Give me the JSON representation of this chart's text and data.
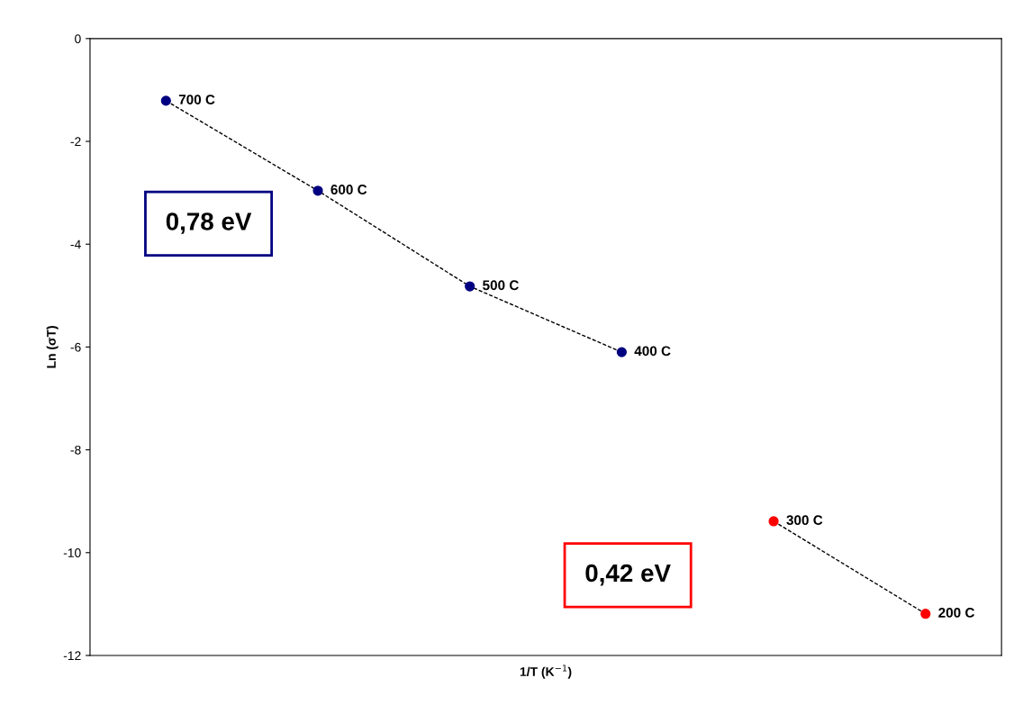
{
  "chart_data": {
    "type": "scatter",
    "xlabel": "1/T (K$^{−1}$)",
    "ylabel": "Ln (σT)",
    "categories": [
      null,
      null,
      null,
      null,
      null,
      null
    ],
    "series": [
      {
        "type": "line",
        "color": "#000000",
        "values": [
          -1.21,
          -2.96,
          -4.82,
          -6.1,
          null,
          null
        ],
        "marker": "none",
        "line_style": "dashed"
      },
      {
        "type": "line",
        "color": "#000000",
        "values": [
          null,
          null,
          null,
          null,
          -9.39,
          -11.19
        ],
        "marker": "none",
        "line_style": "dashed"
      },
      {
        "color": "#000080",
        "values": [
          -1.21,
          -2.96,
          -4.82,
          -6.1,
          null,
          null
        ]
      },
      {
        "color": "#ff0000",
        "values": [
          null,
          null,
          null,
          null,
          -9.39,
          -11.19
        ]
      }
    ],
    "marker": "circle",
    "ylim": [
      -12,
      0
    ],
    "yticks": [
      0,
      -2,
      -4,
      -6,
      -8,
      -10,
      -12
    ],
    "annotations": [
      "0,78 eV",
      "0,42 eV",
      "700 C",
      "600 C",
      "500 C",
      "400 C",
      "300 C",
      "200 C"
    ],
    "grid": false,
    "legend": false
  }
}
